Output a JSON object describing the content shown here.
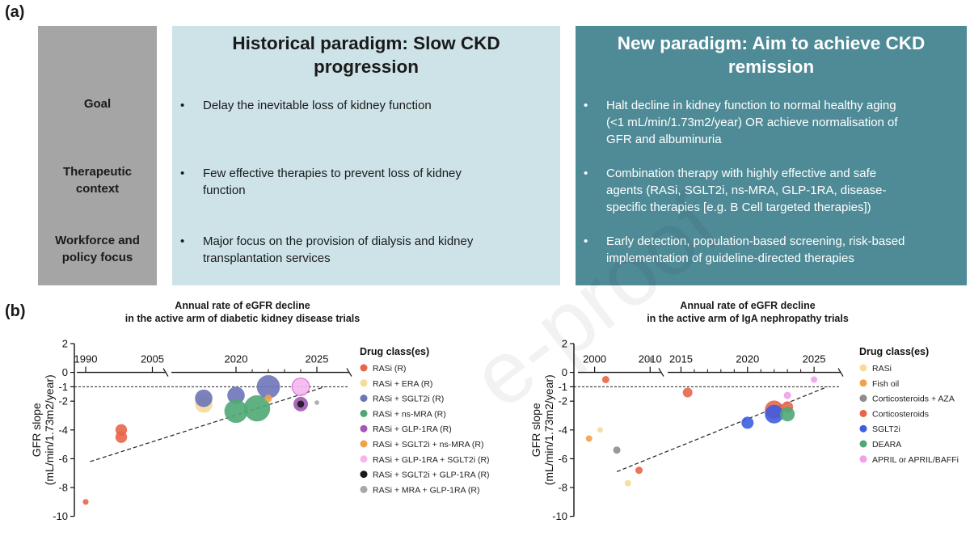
{
  "panel_a": {
    "label": "(a)",
    "row_labels": {
      "goal": "Goal",
      "context_l1": "Therapeutic",
      "context_l2": "context",
      "workforce_l1": "Workforce and",
      "workforce_l2": "policy focus"
    },
    "historical": {
      "title_l1": "Historical paradigm: Slow CKD",
      "title_l2": "progression",
      "goal_l1": "Delay the inevitable loss of kidney function",
      "context_l1": "Few effective therapies to prevent loss of kidney",
      "context_l2": "function",
      "workforce_l1": "Major focus on the provision of dialysis and kidney",
      "workforce_l2": "transplantation services"
    },
    "new": {
      "title_l1": "New paradigm: Aim to achieve CKD",
      "title_l2": "remission",
      "goal_l1": "Halt decline in kidney function to normal healthy aging",
      "goal_l2": "(<1 mL/min/1.73m2/year) OR achieve normalisation of",
      "goal_l3": "GFR and albuminuria",
      "context_l1": "Combination therapy with highly effective and safe",
      "context_l2": "agents (RASi, SGLT2i, ns-MRA, GLP-1RA, disease-",
      "context_l3": "specific therapies [e.g. B Cell targeted therapies])",
      "workforce_l1": "Early detection, population-based screening, risk-based",
      "workforce_l2": "implementation of guideline-directed therapies"
    },
    "bullet": "•"
  },
  "panel_b": {
    "label": "(b)",
    "watermark": "e-proof"
  },
  "chart_data": [
    {
      "type": "scatter",
      "title_l1": "Annual rate of eGFR decline",
      "title_l2": "in the active arm of diabetic kidney disease trials",
      "ylabel_l1": "GFR slope",
      "ylabel_l2": "(mL/min/1.73m2/year)",
      "ylim": [
        -10,
        2
      ],
      "yticks": [
        2,
        0,
        -1,
        -2,
        -4,
        -6,
        -8,
        -10
      ],
      "x_ticks": [
        "1990",
        "2005",
        "2020",
        "2025"
      ],
      "x_axis_broken": true,
      "reference_line_y": -1,
      "trend_line": {
        "from": {
          "x": 1991,
          "y": -6.2
        },
        "to": {
          "x": 2025.5,
          "y": -1.0
        }
      },
      "legend_title": "Drug class(es)",
      "legend": [
        {
          "label": "RASi (R)",
          "color": "#e8654a"
        },
        {
          "label": "RASi + ERA (R)",
          "color": "#f5dc9a"
        },
        {
          "label": "RASi + SGLT2i (R)",
          "color": "#6d74b8"
        },
        {
          "label": "RASi + ns-MRA (R)",
          "color": "#4fa874"
        },
        {
          "label": "RASi + GLP-1RA (R)",
          "color": "#a158b6"
        },
        {
          "label": "RASi + SGLT2i + ns-MRA (R)",
          "color": "#f0a24a"
        },
        {
          "label": "RASi + GLP-1RA + SGLT2i (R)",
          "color": "#f5b6ee"
        },
        {
          "label": "RASi + SGLT2i + GLP-1RA (R)",
          "color": "#1a1a1a"
        },
        {
          "label": "RASi + MRA + GLP-1RA (R)",
          "color": "#a8a8a8"
        }
      ],
      "points": [
        {
          "x": 1990,
          "y": -9.0,
          "size": 1,
          "cls": 0
        },
        {
          "x": 1998,
          "y": -4.0,
          "size": 2,
          "cls": 0
        },
        {
          "x": 1998,
          "y": -4.5,
          "size": 2,
          "cls": 0
        },
        {
          "x": 2018,
          "y": -2.2,
          "size": 3,
          "cls": 1
        },
        {
          "x": 2018,
          "y": -1.8,
          "size": 3,
          "cls": 2
        },
        {
          "x": 2020,
          "y": -1.6,
          "size": 3,
          "cls": 2
        },
        {
          "x": 2020,
          "y": -2.7,
          "size": 4,
          "cls": 3
        },
        {
          "x": 2021.3,
          "y": -2.5,
          "size": 4.5,
          "cls": 3
        },
        {
          "x": 2022,
          "y": -1.0,
          "size": 4,
          "cls": 2
        },
        {
          "x": 2022,
          "y": -1.8,
          "size": 1.3,
          "cls": 5
        },
        {
          "x": 2024,
          "y": -1.0,
          "size": 3,
          "cls": 6
        },
        {
          "x": 2024,
          "y": -2.2,
          "size": 2.5,
          "cls": 4
        },
        {
          "x": 2024,
          "y": -2.2,
          "size": 1.2,
          "cls": 7
        },
        {
          "x": 2025,
          "y": -2.1,
          "size": 0.8,
          "cls": 8
        }
      ]
    },
    {
      "type": "scatter",
      "title_l1": "Annual rate of eGFR decline",
      "title_l2": "in the active arm of IgA nephropathy trials",
      "ylabel_l1": "GFR slope",
      "ylabel_l2": "(mL/min/1.73m2/year)",
      "ylim": [
        -10,
        2
      ],
      "yticks": [
        2,
        0,
        -1,
        -2,
        -4,
        -6,
        -8,
        -10
      ],
      "x_ticks": [
        "2000",
        "2010",
        "2015",
        "2020",
        "2025"
      ],
      "x_axis_broken": true,
      "reference_line_y": -1,
      "trend_line": {
        "from": {
          "x": 2004,
          "y": -6.9
        },
        "to": {
          "x": 2026,
          "y": -1.0
        }
      },
      "legend_title": "Drug class(es)",
      "legend": [
        {
          "label": "RASi",
          "color": "#f5dc9a"
        },
        {
          "label": "Fish oil",
          "color": "#f0a24a"
        },
        {
          "label": "Corticosteroids + AZA",
          "color": "#8d8d8d"
        },
        {
          "label": "Corticosteroids",
          "color": "#e8654a"
        },
        {
          "label": "SGLT2i",
          "color": "#3e5de0"
        },
        {
          "label": "DEARA",
          "color": "#4fa874"
        },
        {
          "label": "APRIL or APRIL/BAFFi",
          "color": "#f0a0ec"
        }
      ],
      "points": [
        {
          "x": 1999,
          "y": -4.6,
          "size": 0.8,
          "cls": 1
        },
        {
          "x": 2001,
          "y": -4.0,
          "size": 0.7,
          "cls": 0
        },
        {
          "x": 2002,
          "y": -0.5,
          "size": 0.9,
          "cls": 3
        },
        {
          "x": 2004,
          "y": -5.4,
          "size": 0.9,
          "cls": 2
        },
        {
          "x": 2006,
          "y": -7.7,
          "size": 0.8,
          "cls": 0
        },
        {
          "x": 2008,
          "y": -6.8,
          "size": 0.9,
          "cls": 3
        },
        {
          "x": 2010,
          "y": 0.9,
          "size": 0.6,
          "cls": 2
        },
        {
          "x": 2015.5,
          "y": -1.4,
          "size": 1.2,
          "cls": 3
        },
        {
          "x": 2020,
          "y": -3.5,
          "size": 1.5,
          "cls": 4
        },
        {
          "x": 2022,
          "y": -2.6,
          "size": 2.3,
          "cls": 3
        },
        {
          "x": 2022,
          "y": -2.9,
          "size": 2.3,
          "cls": 4
        },
        {
          "x": 2023,
          "y": -2.4,
          "size": 1.4,
          "cls": 3
        },
        {
          "x": 2023,
          "y": -2.9,
          "size": 1.8,
          "cls": 5
        },
        {
          "x": 2023,
          "y": -1.6,
          "size": 0.9,
          "cls": 6
        },
        {
          "x": 2025,
          "y": -0.5,
          "size": 0.8,
          "cls": 6
        }
      ]
    }
  ]
}
